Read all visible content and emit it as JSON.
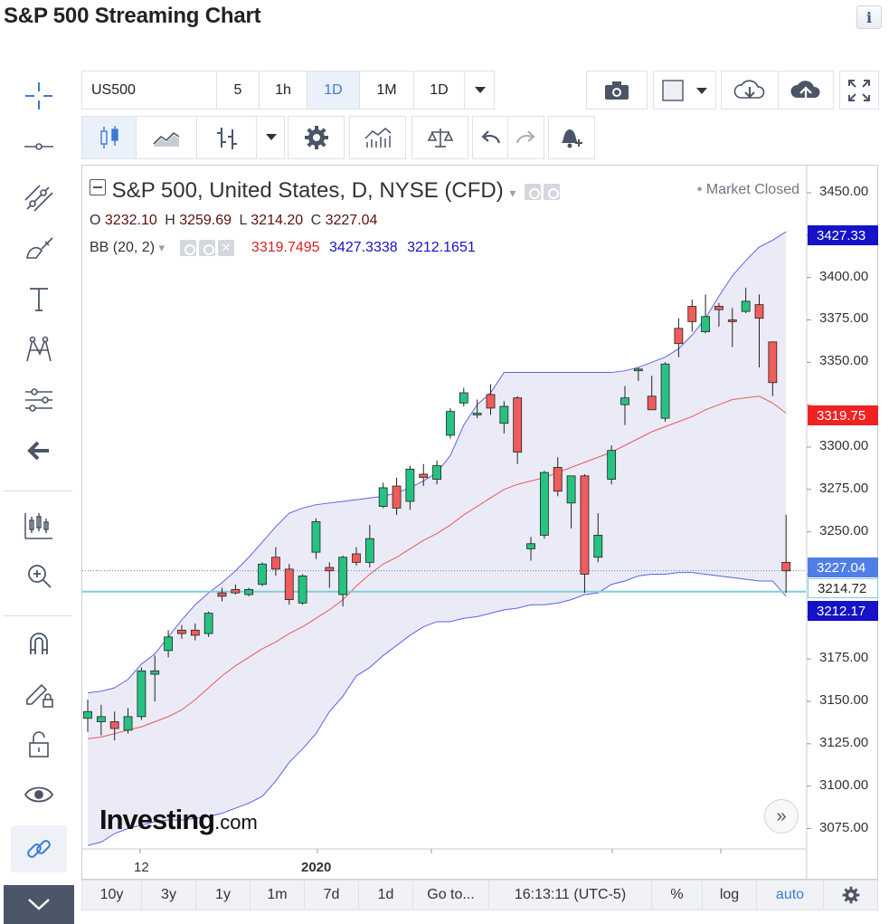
{
  "page_title": "S&P 500 Streaming Chart",
  "info_icon": "info-icon",
  "toolbar_top": {
    "symbol": "US500",
    "intervals": [
      "5",
      "1h",
      "1D",
      "1M",
      "1D"
    ],
    "active_interval": "1D"
  },
  "chart_header": {
    "title": "S&P 500, United States, D, NYSE (CFD)",
    "status": "Market Closed",
    "ohlc": {
      "o_label": "O",
      "o": "3232.10",
      "h_label": "H",
      "h": "3259.69",
      "l_label": "L",
      "l": "3214.20",
      "c_label": "C",
      "c": "3227.04"
    },
    "indicator": {
      "name": "BB (20, 2)",
      "basis": "3319.7495",
      "upper": "3427.3338",
      "lower": "3212.1651"
    }
  },
  "price_tags": {
    "upper": "3427.33",
    "basis": "3319.75",
    "last": "3227.04",
    "low": "3214.72",
    "lower": "3212.17"
  },
  "colors": {
    "up": "#26c281",
    "down": "#f05c5c",
    "band_fill": "#e6e7f5",
    "band_line": "#5b63e8",
    "basis_line": "#e85a5a",
    "accent": "#3a7bd5",
    "upper_tag": "#1512c8",
    "basis_tag": "#f02222",
    "last_tag": "#4f7fe6",
    "low_line": "#7fcfd8"
  },
  "bottom_bar": {
    "ranges": [
      "10y",
      "3y",
      "1y",
      "1m",
      "7d",
      "1d"
    ],
    "goto": "Go to...",
    "time": "16:13:11 (UTC-5)",
    "percent": "%",
    "log": "log",
    "auto": "auto"
  },
  "logo": {
    "brand": "Investing",
    "suffix": ".com"
  },
  "chart_data": {
    "type": "candlestick",
    "title": "S&P 500, United States, D, NYSE (CFD)",
    "x_labels": [
      "12",
      "2020"
    ],
    "y_ticks": [
      3450,
      3425,
      3400,
      3375,
      3350,
      3325,
      3300,
      3275,
      3250,
      3225,
      3200,
      3175,
      3150,
      3125,
      3100,
      3075
    ],
    "y_tick_labels": [
      "3450.00",
      "3400.00",
      "3375.00",
      "3350.00",
      "3300.00",
      "3275.00",
      "3250.00",
      "3175.00",
      "3150.00",
      "3125.00",
      "3100.00",
      "3075.00"
    ],
    "ylim": [
      3063,
      3466
    ],
    "candles": [
      [
        3140,
        3151,
        3132,
        3144
      ],
      [
        3138,
        3148,
        3130,
        3141
      ],
      [
        3138,
        3144,
        3127,
        3134
      ],
      [
        3133,
        3146,
        3131,
        3141
      ],
      [
        3141,
        3170,
        3139,
        3168
      ],
      [
        3166,
        3177,
        3150,
        3168
      ],
      [
        3180,
        3192,
        3176,
        3188
      ],
      [
        3192,
        3195,
        3187,
        3190
      ],
      [
        3192,
        3196,
        3186,
        3189
      ],
      [
        3190,
        3203,
        3188,
        3202
      ],
      [
        3214,
        3217,
        3209,
        3212
      ],
      [
        3216,
        3219,
        3213,
        3214
      ],
      [
        3213,
        3217,
        3212,
        3216
      ],
      [
        3219,
        3232,
        3218,
        3231
      ],
      [
        3235,
        3241,
        3224,
        3228
      ],
      [
        3228,
        3231,
        3207,
        3210
      ],
      [
        3208,
        3225,
        3207,
        3224
      ],
      [
        3238,
        3258,
        3234,
        3256
      ],
      [
        3229,
        3232,
        3217,
        3227
      ],
      [
        3213,
        3236,
        3206,
        3235
      ],
      [
        3237,
        3241,
        3230,
        3232
      ],
      [
        3232,
        3254,
        3229,
        3246
      ],
      [
        3265,
        3279,
        3264,
        3276
      ],
      [
        3277,
        3282,
        3260,
        3264
      ],
      [
        3268,
        3289,
        3263,
        3287
      ],
      [
        3284,
        3290,
        3277,
        3282
      ],
      [
        3281,
        3292,
        3278,
        3289
      ],
      [
        3307,
        3323,
        3305,
        3321
      ],
      [
        3326,
        3335,
        3324,
        3332
      ],
      [
        3319,
        3328,
        3317,
        3320
      ],
      [
        3331,
        3337,
        3319,
        3323
      ],
      [
        3314,
        3327,
        3308,
        3324
      ],
      [
        3329,
        3330,
        3290,
        3297
      ],
      [
        3240,
        3247,
        3233,
        3243
      ],
      [
        3248,
        3286,
        3246,
        3285
      ],
      [
        3288,
        3294,
        3271,
        3274
      ],
      [
        3267,
        3283,
        3252,
        3283
      ],
      [
        3283,
        3284,
        3214,
        3225
      ],
      [
        3235,
        3261,
        3232,
        3248
      ],
      [
        3281,
        3301,
        3278,
        3298
      ],
      [
        3325,
        3336,
        3313,
        3329
      ],
      [
        3345,
        3347,
        3339,
        3346
      ],
      [
        3330,
        3342,
        3323,
        3322
      ],
      [
        3317,
        3350,
        3315,
        3349
      ],
      [
        3370,
        3376,
        3353,
        3361
      ],
      [
        3383,
        3387,
        3368,
        3374
      ],
      [
        3368,
        3390,
        3367,
        3377
      ],
      [
        3383,
        3385,
        3371,
        3381
      ],
      [
        3375,
        3382,
        3359,
        3374
      ],
      [
        3380,
        3394,
        3379,
        3386
      ],
      [
        3384,
        3390,
        3347,
        3376
      ],
      [
        3362,
        3362,
        3330,
        3338
      ],
      [
        3232,
        3260,
        3214,
        3227
      ]
    ],
    "bollinger": {
      "upper": [
        3155,
        3156,
        3158,
        3163,
        3172,
        3178,
        3188,
        3198,
        3207,
        3214,
        3220,
        3227,
        3235,
        3244,
        3253,
        3261,
        3264,
        3266,
        3267,
        3268,
        3269,
        3270,
        3271,
        3273,
        3276,
        3280,
        3285,
        3295,
        3313,
        3325,
        3332,
        3344,
        3344,
        3344,
        3344,
        3344,
        3344,
        3344,
        3344,
        3344,
        3345,
        3347,
        3350,
        3353,
        3358,
        3366,
        3376,
        3389,
        3401,
        3410,
        3418,
        3422,
        3427
      ],
      "basis": [
        3128,
        3129,
        3131,
        3133,
        3135,
        3138,
        3141,
        3145,
        3151,
        3158,
        3165,
        3171,
        3176,
        3181,
        3185,
        3190,
        3194,
        3199,
        3204,
        3210,
        3218,
        3225,
        3231,
        3235,
        3240,
        3245,
        3249,
        3254,
        3260,
        3265,
        3270,
        3275,
        3278,
        3280,
        3282,
        3285,
        3288,
        3291,
        3294,
        3297,
        3301,
        3305,
        3309,
        3312,
        3315,
        3318,
        3322,
        3325,
        3328,
        3329,
        3330,
        3326,
        3320
      ],
      "lower": [
        3065,
        3067,
        3072,
        3075,
        3077,
        3079,
        3080,
        3080,
        3081,
        3082,
        3084,
        3087,
        3090,
        3094,
        3103,
        3114,
        3122,
        3131,
        3144,
        3153,
        3165,
        3170,
        3177,
        3183,
        3189,
        3194,
        3197,
        3197,
        3199,
        3200,
        3202,
        3204,
        3205,
        3207,
        3207,
        3208,
        3210,
        3213,
        3214,
        3219,
        3221,
        3224,
        3225,
        3225,
        3226,
        3226,
        3225,
        3224,
        3223,
        3222,
        3221,
        3221,
        3212
      ]
    },
    "last_price": 3227.04,
    "low_line": 3214.72
  }
}
